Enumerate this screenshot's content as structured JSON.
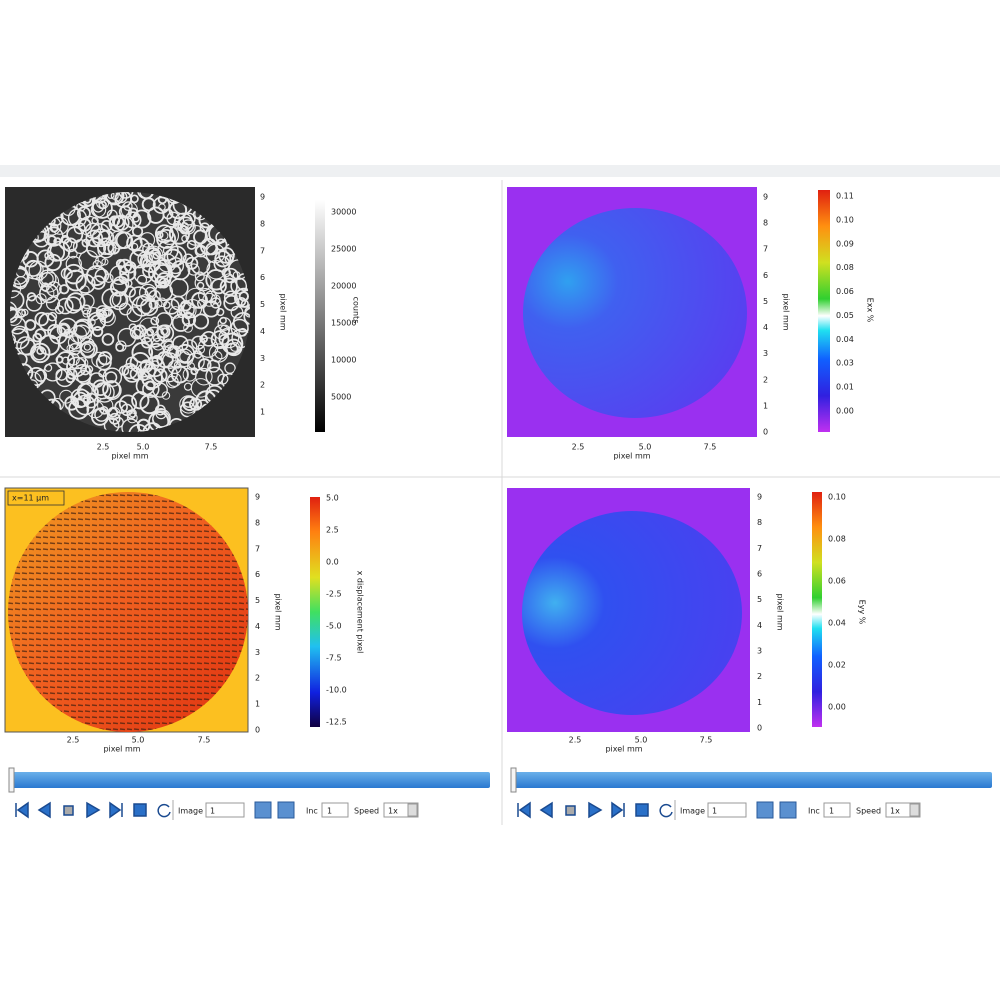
{
  "panels": [
    {
      "y_ticks": [
        "9",
        "8",
        "7",
        "6",
        "5",
        "4",
        "3",
        "2",
        "1"
      ],
      "x_ticks": [
        "2.5",
        "5.0",
        "7.5"
      ],
      "x_label": "pixel mm",
      "y_label": "pixel mm",
      "colorbar_ticks": [
        "30000",
        "25000",
        "20000",
        "15000",
        "10000",
        "5000"
      ],
      "colorbar_label": "counts"
    },
    {
      "y_ticks": [
        "9",
        "8",
        "7",
        "6",
        "5",
        "4",
        "3",
        "2",
        "1",
        "0"
      ],
      "x_ticks": [
        "2.5",
        "5.0",
        "7.5"
      ],
      "x_label": "pixel mm",
      "y_label": "pixel mm",
      "colorbar_ticks": [
        "0.11",
        "0.10",
        "0.09",
        "0.08",
        "0.06",
        "0.05",
        "0.04",
        "0.03",
        "0.01",
        "0.00"
      ],
      "colorbar_label": "Exx %"
    },
    {
      "title": "x=11 µm",
      "y_ticks": [
        "9",
        "8",
        "7",
        "6",
        "5",
        "4",
        "3",
        "2",
        "1",
        "0"
      ],
      "x_ticks": [
        "2.5",
        "5.0",
        "7.5"
      ],
      "x_label": "pixel mm",
      "y_label": "pixel mm",
      "colorbar_ticks": [
        "5.0",
        "2.5",
        "0.0",
        "-2.5",
        "-5.0",
        "-7.5",
        "-10.0",
        "-12.5"
      ],
      "colorbar_label": "x displacement pixel"
    },
    {
      "y_ticks": [
        "9",
        "8",
        "7",
        "6",
        "5",
        "4",
        "3",
        "2",
        "1",
        "0"
      ],
      "x_ticks": [
        "2.5",
        "5.0",
        "7.5"
      ],
      "x_label": "pixel mm",
      "y_label": "pixel mm",
      "colorbar_ticks": [
        "0.10",
        "0.08",
        "0.06",
        "0.04",
        "0.02",
        "0.00"
      ],
      "colorbar_label": "Eyy %"
    }
  ],
  "toolbars": [
    {
      "image_label": "Image",
      "image_value": "1",
      "inc_label": "Inc",
      "inc_value": "1",
      "speed_label": "Speed",
      "speed_value": "1x"
    },
    {
      "image_label": "Image",
      "image_value": "1",
      "inc_label": "Inc",
      "inc_value": "1",
      "speed_label": "Speed",
      "speed_value": "1x"
    }
  ]
}
